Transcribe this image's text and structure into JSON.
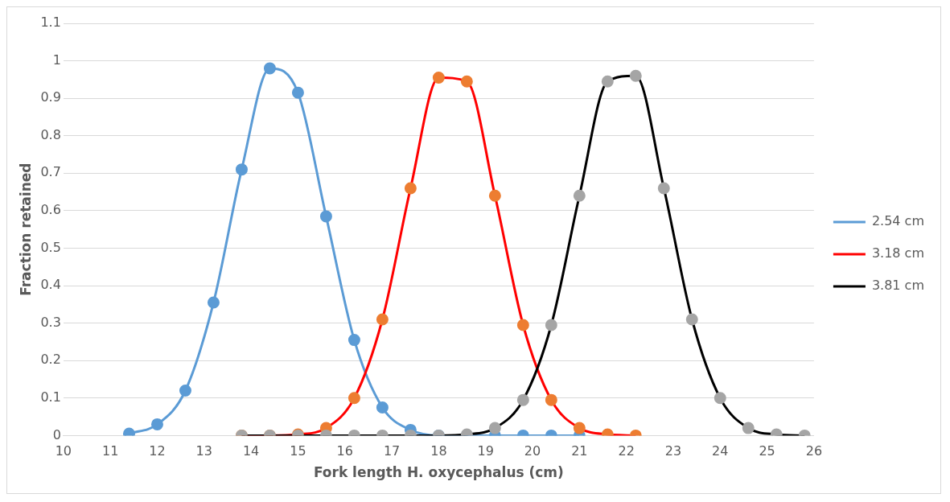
{
  "chart_data": {
    "type": "line",
    "xlabel": "Fork length H. oxycephalus (cm)",
    "ylabel": "Fraction retained",
    "xlim": [
      10,
      26
    ],
    "xticks": [
      10,
      11,
      12,
      13,
      14,
      15,
      16,
      17,
      18,
      19,
      20,
      21,
      22,
      23,
      24,
      25,
      26
    ],
    "ylim": [
      0,
      1.1
    ],
    "yticks": [
      0,
      0.1,
      0.2,
      0.3,
      0.4,
      0.5,
      0.6,
      0.7,
      0.8,
      0.9,
      1,
      1.1
    ],
    "grid": "y",
    "legend": "right",
    "marker": "circle",
    "line_style": "solid",
    "series": [
      {
        "name": "2.54 cm",
        "color": "#5b9bd5",
        "x": [
          11.4,
          12.0,
          12.6,
          13.2,
          13.8,
          14.4,
          15.0,
          15.6,
          16.2,
          16.8,
          17.4,
          18.0,
          18.6,
          19.2,
          19.8,
          20.4,
          21.0
        ],
        "values": [
          0.005,
          0.03,
          0.12,
          0.355,
          0.71,
          0.98,
          0.915,
          0.585,
          0.255,
          0.075,
          0.015,
          0,
          0,
          0,
          0,
          0,
          0
        ]
      },
      {
        "name": "3.18 cm",
        "color": "#ff0000",
        "colors": [
          "#ed7d31",
          "#ed7d31",
          "#ed7d31",
          "#ed7d31",
          "#ed7d31",
          "#ed7d31",
          "#ed7d31",
          "#ed7d31",
          "#ed7d31",
          "#ed7d31",
          "#ed7d31",
          "#ed7d31",
          "#ed7d31",
          "#ed7d31",
          "#ed7d31"
        ],
        "x": [
          13.8,
          14.4,
          15.0,
          15.6,
          16.2,
          16.8,
          17.4,
          18.0,
          18.6,
          19.2,
          19.8,
          20.4,
          21.0,
          21.6,
          22.2
        ],
        "values": [
          0,
          0,
          0.003,
          0.02,
          0.1,
          0.31,
          0.66,
          0.955,
          0.945,
          0.64,
          0.295,
          0.095,
          0.02,
          0.003,
          0
        ]
      },
      {
        "name": "3.81 cm",
        "color": "#000000",
        "colors": [
          "#a5a5a5",
          "#a5a5a5",
          "#a5a5a5",
          "#a5a5a5",
          "#a5a5a5",
          "#a5a5a5",
          "#a5a5a5",
          "#a5a5a5",
          "#a5a5a5",
          "#a5a5a5",
          "#a5a5a5",
          "#a5a5a5",
          "#a5a5a5",
          "#a5a5a5",
          "#a5a5a5",
          "#a5a5a5",
          "#a5a5a5",
          "#a5a5a5",
          "#a5a5a5",
          "#a5a5a5",
          "#a5a5a5"
        ],
        "x": [
          13.8,
          14.4,
          15.0,
          15.6,
          16.2,
          16.8,
          17.4,
          18.0,
          18.6,
          19.2,
          19.8,
          20.4,
          21.0,
          21.6,
          22.2,
          22.8,
          23.4,
          24.0,
          24.6,
          25.2,
          25.8
        ],
        "values": [
          0,
          0,
          0,
          0,
          0,
          0,
          0,
          0,
          0.003,
          0.02,
          0.095,
          0.295,
          0.64,
          0.945,
          0.96,
          0.66,
          0.31,
          0.1,
          0.02,
          0.003,
          0
        ]
      }
    ]
  }
}
